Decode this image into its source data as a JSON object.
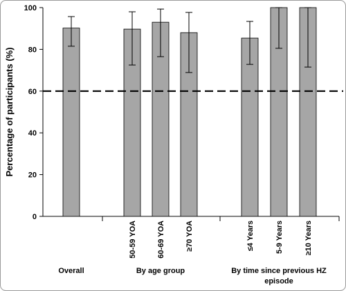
{
  "chart_data": {
    "type": "bar",
    "y_label": "Percentage of participants (%)",
    "categories": [
      "Overall",
      "50-59 YOA",
      "60-69 YOA",
      "≥70 YOA",
      "≤4 Years",
      "5-9 Years",
      "≥10 Years"
    ],
    "groups": [
      "Overall",
      "By age group",
      "By time since previous HZ episode"
    ],
    "series": [
      {
        "color": "#a6a6a6",
        "values": [
          90.2,
          89.7,
          93.0,
          88.0,
          85.4,
          100,
          100
        ],
        "ci_lower": [
          81.5,
          72.5,
          76.5,
          68.9,
          72.8,
          80.5,
          71.5
        ],
        "ci_upper": [
          95.7,
          98.0,
          99.3,
          97.7,
          93.4,
          100,
          100
        ]
      }
    ],
    "reference_line": 60,
    "ylim": [
      0,
      100
    ],
    "yticks": [
      0,
      20,
      40,
      60,
      80,
      100
    ],
    "grid": false
  }
}
